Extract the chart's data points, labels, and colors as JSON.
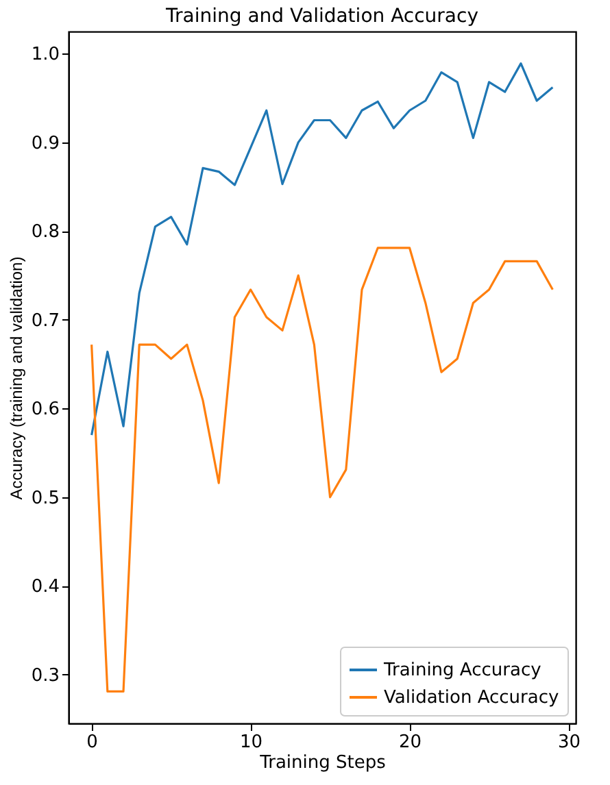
{
  "chart_data": {
    "type": "line",
    "title": "Training and Validation Accuracy",
    "xlabel": "Training Steps",
    "ylabel": "Accuracy (training and validation)",
    "x": [
      0,
      1,
      2,
      3,
      4,
      5,
      6,
      7,
      8,
      9,
      10,
      11,
      12,
      13,
      14,
      15,
      16,
      17,
      18,
      19,
      20,
      21,
      22,
      23,
      24,
      25,
      26,
      27,
      28,
      29
    ],
    "series": [
      {
        "name": "Training Accuracy",
        "color": "#1f77b4",
        "values": [
          0.57,
          0.664,
          0.58,
          0.73,
          0.805,
          0.816,
          0.785,
          0.871,
          0.867,
          0.852,
          0.894,
          0.936,
          0.853,
          0.9,
          0.925,
          0.925,
          0.905,
          0.936,
          0.946,
          0.916,
          0.936,
          0.947,
          0.979,
          0.968,
          0.905,
          0.968,
          0.957,
          0.989,
          0.947,
          0.962
        ]
      },
      {
        "name": "Validation Accuracy",
        "color": "#ff7f0e",
        "values": [
          0.672,
          0.281,
          0.281,
          0.672,
          0.672,
          0.656,
          0.672,
          0.609,
          0.516,
          0.703,
          0.734,
          0.703,
          0.688,
          0.75,
          0.672,
          0.5,
          0.531,
          0.734,
          0.781,
          0.781,
          0.781,
          0.719,
          0.641,
          0.656,
          0.719,
          0.734,
          0.766,
          0.766,
          0.766,
          0.734
        ]
      }
    ],
    "xlim": [
      -1.45,
      30.45
    ],
    "xticks": [
      0,
      10,
      20,
      30
    ],
    "ylim": [
      0.245,
      1.025
    ],
    "yticks": [
      {
        "value": 0.3,
        "label": "0.3"
      },
      {
        "value": 0.4,
        "label": "0.4"
      },
      {
        "value": 0.5,
        "label": "0.5"
      },
      {
        "value": 0.6,
        "label": "0.6"
      },
      {
        "value": 0.7,
        "label": "0.7"
      },
      {
        "value": 0.8,
        "label": "0.8"
      },
      {
        "value": 0.9,
        "label": "0.9"
      },
      {
        "value": 1.0,
        "label": "1.0"
      }
    ],
    "grid": false,
    "legend": "bottom right",
    "marker": "none",
    "line_style": "solid"
  }
}
